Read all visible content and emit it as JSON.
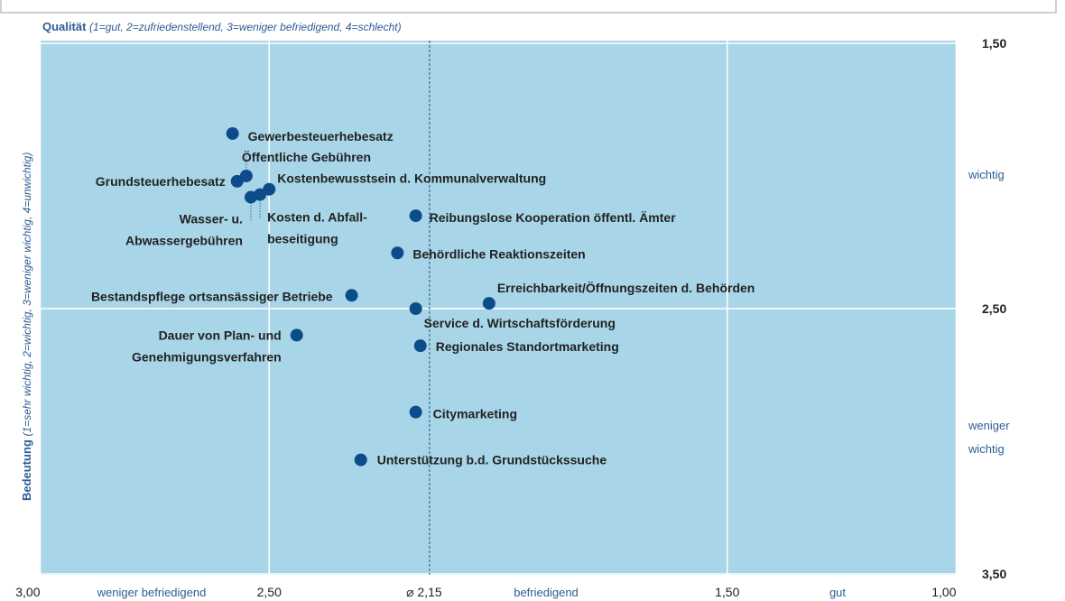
{
  "chart_data": {
    "type": "scatter",
    "x_label": "Qualität",
    "x_label_note": "(1=gut, 2=zufriedenstellend, 3=weniger befriedigend, 4=schlecht)",
    "y_label": "Bedeutung",
    "y_label_note": "(1=sehr wichtig, 2=wichtig, 3=weniger wichtig, 4=unwichtig)",
    "xlim": [
      3.0,
      1.0
    ],
    "ylim": [
      1.5,
      3.5
    ],
    "xticks": [
      {
        "value": 3.0,
        "label": "3,00"
      },
      {
        "value": 2.5,
        "label": "2,50"
      },
      {
        "value": 1.5,
        "label": "1,50"
      },
      {
        "value": 1.0,
        "label": "1,00"
      }
    ],
    "yticks": [
      {
        "value": 1.5,
        "label": "1,50"
      },
      {
        "value": 2.5,
        "label": "2,50"
      },
      {
        "value": 3.5,
        "label": "3,50"
      }
    ],
    "mean_x": {
      "value": 2.15,
      "label": "⌀ 2,15"
    },
    "x_annotations": [
      "weniger befriedigend",
      "befriedigend",
      "gut"
    ],
    "y_annotations": [
      [
        "wichtig"
      ],
      [
        "weniger",
        "wichtig"
      ]
    ],
    "grid": true,
    "color": "#0d4c8b",
    "labels": [
      [
        "Gewerbesteuerhebesatz"
      ],
      [
        "Öffentliche Gebühren"
      ],
      [
        "Grundsteuerhebesatz"
      ],
      [
        "Kostenbewusstsein d. Kommunalverwaltung"
      ],
      [
        "Wasser- u.",
        "Abwassergebühren"
      ],
      [
        "Kosten d. Abfall-",
        "beseitigung"
      ],
      [
        "Reibungslose Kooperation öffentl. Ämter"
      ],
      [
        "Behördliche Reaktionszeiten"
      ],
      [
        "Bestandspflege ortsansässiger Betriebe"
      ],
      [
        "Erreichbarkeit/Öffnungszeiten d. Behörden"
      ],
      [
        "Service d. Wirtschaftsförderung"
      ],
      [
        "Dauer von Plan- und",
        "Genehmigungsverfahren"
      ],
      [
        "Regionales Standortmarketing"
      ],
      [
        "Citymarketing"
      ],
      [
        "Unterstützung b.d. Grundstückssuche"
      ]
    ],
    "x": [
      2.58,
      2.55,
      2.57,
      2.5,
      2.54,
      2.52,
      2.18,
      2.22,
      2.32,
      2.02,
      2.18,
      2.44,
      2.17,
      2.18,
      2.3
    ],
    "y": [
      1.84,
      2.0,
      2.02,
      2.05,
      2.08,
      2.07,
      2.15,
      2.29,
      2.45,
      2.48,
      2.5,
      2.6,
      2.64,
      2.89,
      3.07
    ]
  }
}
